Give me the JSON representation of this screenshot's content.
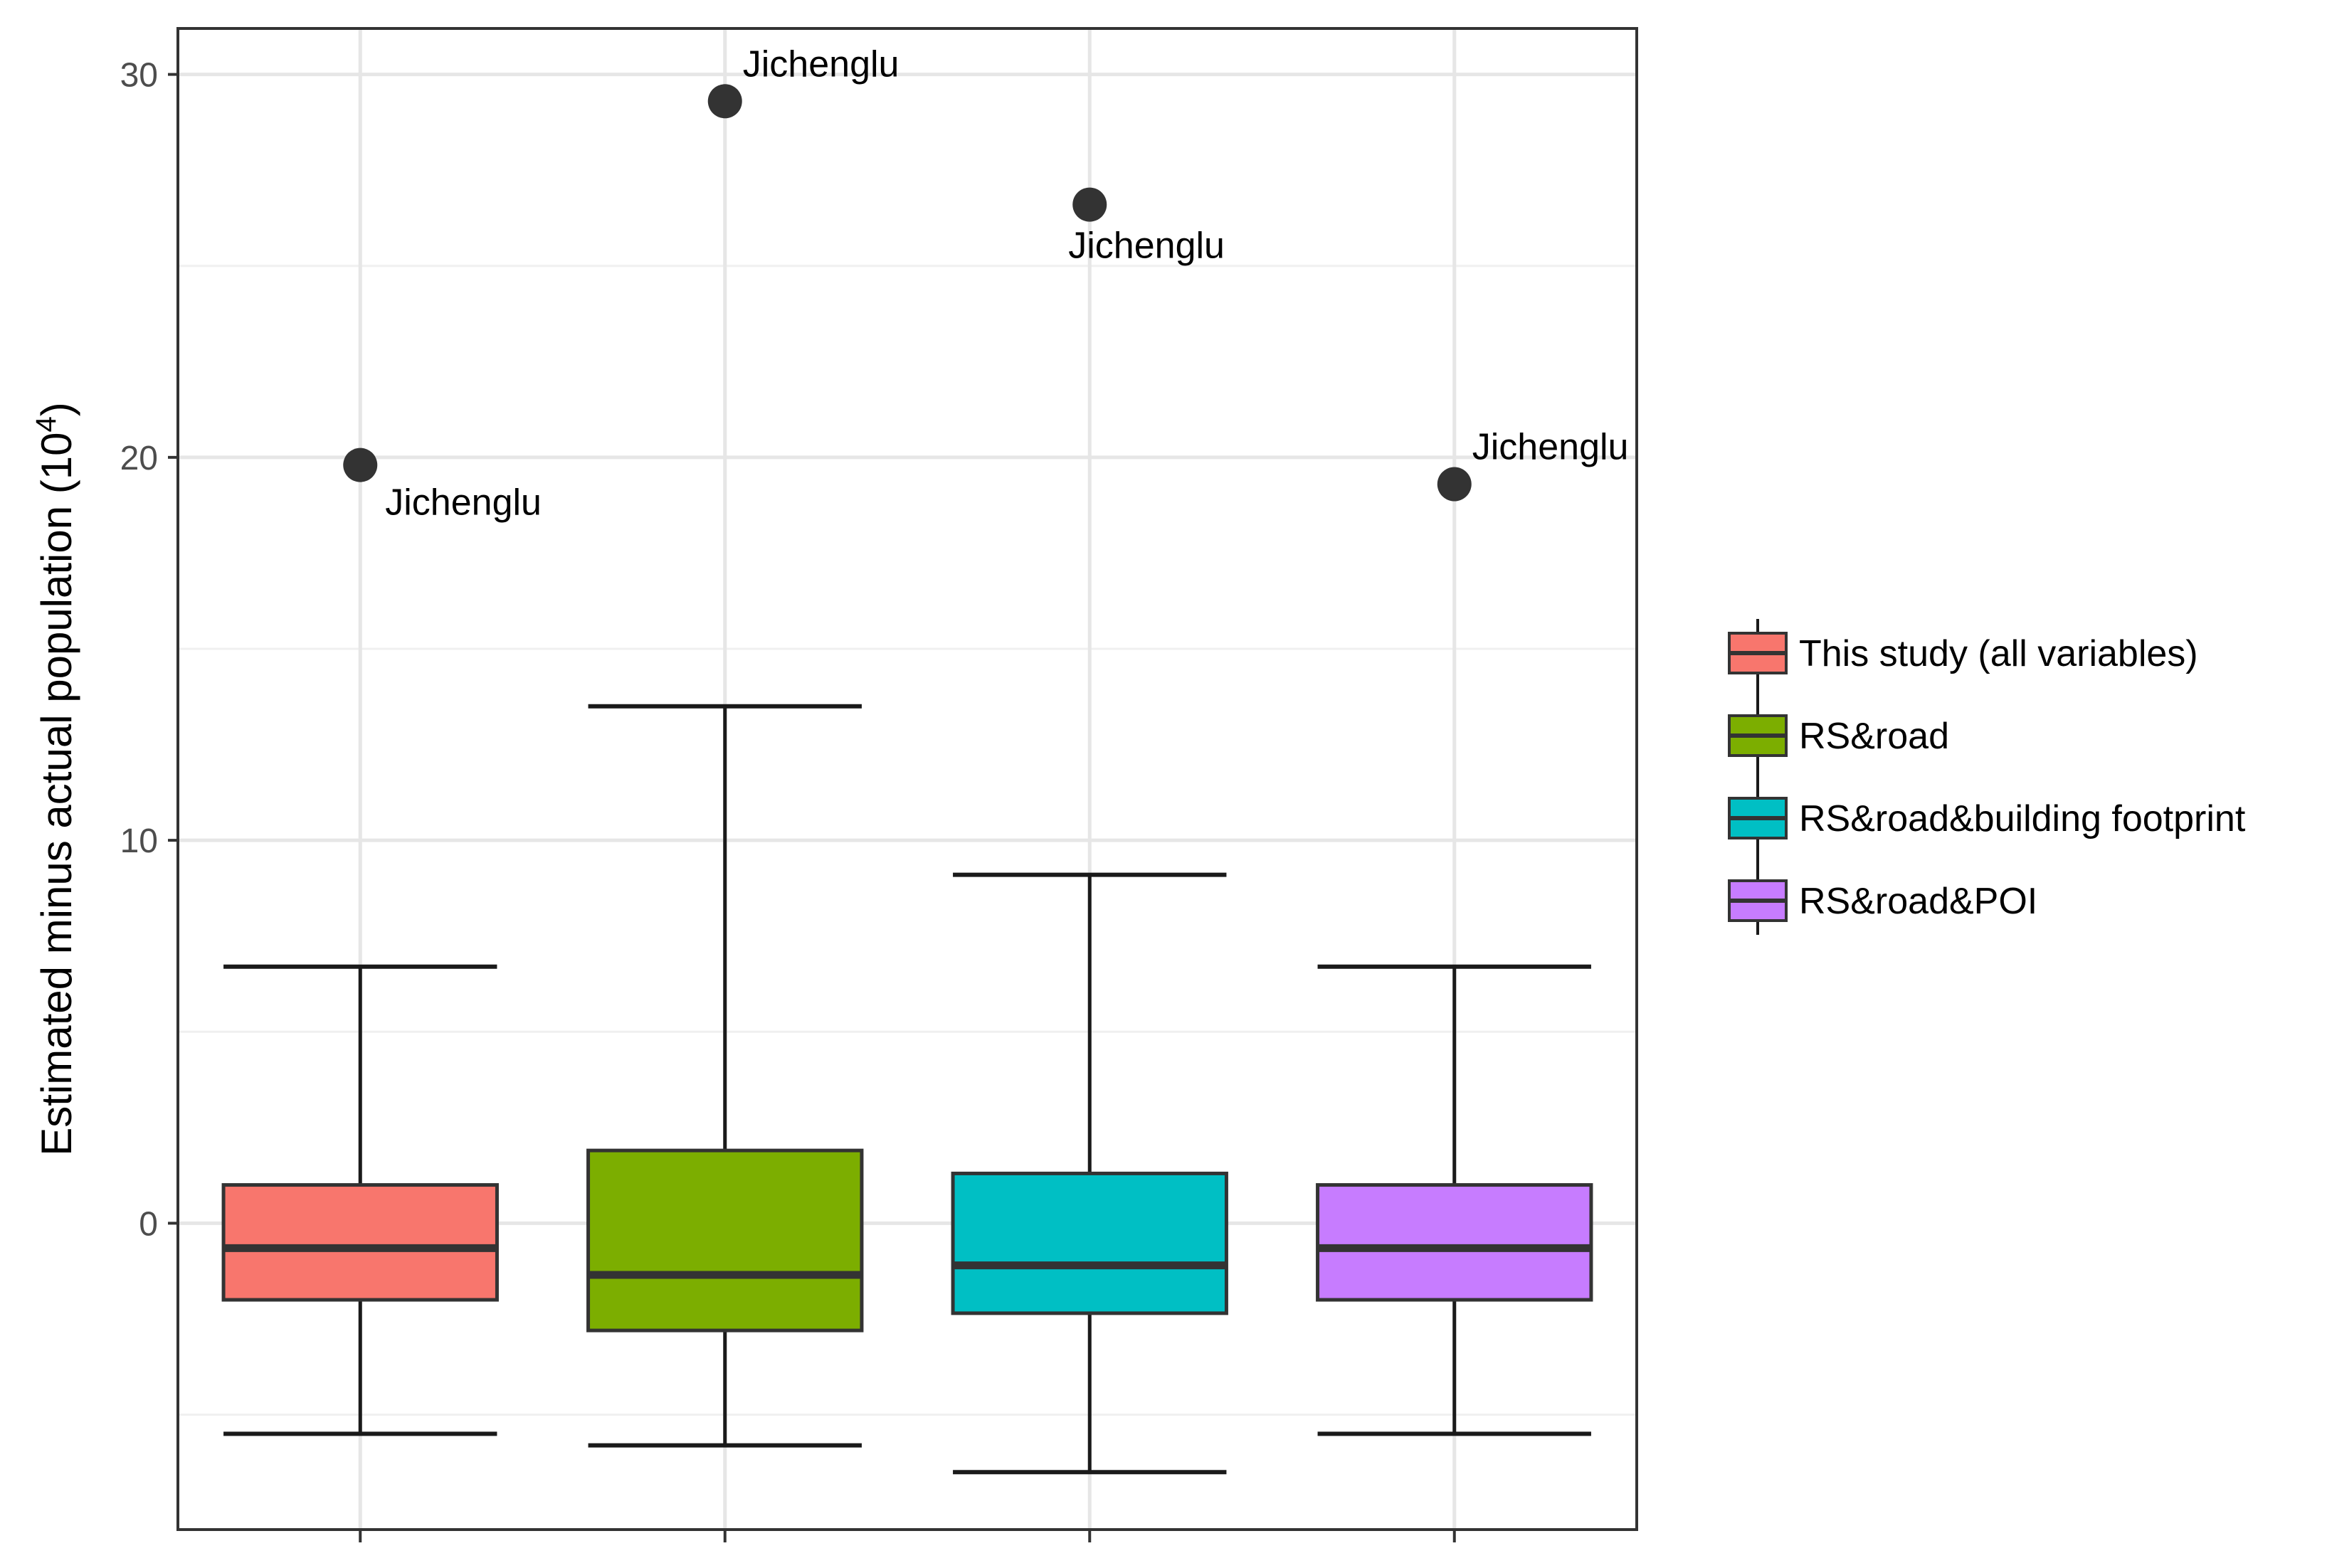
{
  "chart_data": {
    "type": "boxplot",
    "title": "",
    "xlabel": "",
    "ylabel_main": "Estimated minus actual population (10",
    "ylabel_sup": "4",
    "ylabel_close": ")",
    "ylim": [
      -8,
      31.2
    ],
    "yticks": [
      0,
      10,
      20,
      30
    ],
    "ytick_labels": [
      "0",
      "10",
      "20",
      "30"
    ],
    "minor_gridlines": [
      -5,
      5,
      15,
      25
    ],
    "grid": true,
    "legend_position": "right",
    "series": [
      {
        "name": "This study (all variables)",
        "color": "#F8766D",
        "whisker_low": -5.5,
        "q1": -2.0,
        "median": -0.65,
        "q3": 1.0,
        "whisker_high": 6.7,
        "outliers": [
          {
            "value": 19.8,
            "label": "Jichenglu",
            "label_pos": "below-right"
          }
        ]
      },
      {
        "name": "RS&road",
        "color": "#7CAE00",
        "whisker_low": -5.8,
        "q1": -2.8,
        "median": -1.35,
        "q3": 1.9,
        "whisker_high": 13.5,
        "outliers": [
          {
            "value": 29.3,
            "label": "Jichenglu",
            "label_pos": "above-right"
          }
        ]
      },
      {
        "name": "RS&road&building footprint",
        "color": "#00BFC4",
        "whisker_low": -6.5,
        "q1": -2.35,
        "median": -1.1,
        "q3": 1.3,
        "whisker_high": 9.1,
        "outliers": [
          {
            "value": 26.6,
            "label": "Jichenglu",
            "label_pos": "below"
          }
        ]
      },
      {
        "name": "RS&road&POI",
        "color": "#C77CFF",
        "whisker_low": -5.5,
        "q1": -2.0,
        "median": -0.65,
        "q3": 1.0,
        "whisker_high": 6.7,
        "outliers": [
          {
            "value": 19.3,
            "label": "Jichenglu",
            "label_pos": "above-right"
          }
        ]
      }
    ]
  }
}
